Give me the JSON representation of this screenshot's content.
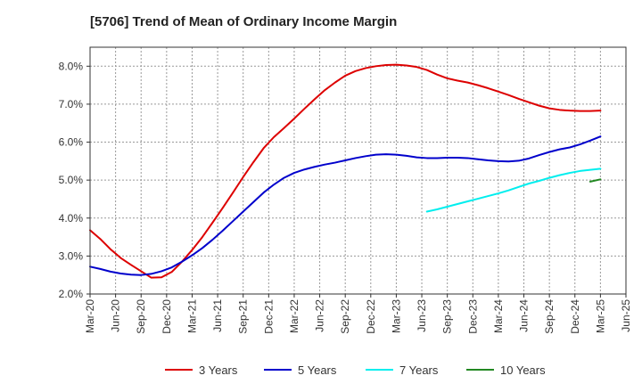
{
  "chart_data": {
    "type": "line",
    "title": "[5706]  Trend of Mean of Ordinary Income Margin",
    "xlabel": "",
    "ylabel": "",
    "x_tick_labels": [
      "Mar-20",
      "Jun-20",
      "Sep-20",
      "Dec-20",
      "Mar-21",
      "Jun-21",
      "Sep-21",
      "Dec-21",
      "Mar-22",
      "Jun-22",
      "Sep-22",
      "Dec-22",
      "Mar-23",
      "Jun-23",
      "Sep-23",
      "Dec-23",
      "Mar-24",
      "Jun-24",
      "Sep-24",
      "Dec-24",
      "Mar-25",
      "Jun-25"
    ],
    "y_tick_labels": [
      "2.0%",
      "3.0%",
      "4.0%",
      "5.0%",
      "6.0%",
      "7.0%",
      "8.0%"
    ],
    "ylim": [
      2.0,
      8.5
    ],
    "y_unit": "%",
    "grid": true,
    "grid_style": "dashed",
    "legend_position": "bottom",
    "series": [
      {
        "name": "3 Years",
        "color": "#dd0000",
        "values": [
          3.68,
          3.45,
          3.18,
          2.95,
          2.77,
          2.6,
          2.43,
          2.44,
          2.58,
          2.85,
          3.16,
          3.5,
          3.88,
          4.27,
          4.67,
          5.08,
          5.47,
          5.84,
          6.13,
          6.37,
          6.62,
          6.88,
          7.13,
          7.37,
          7.57,
          7.75,
          7.87,
          7.95,
          8.0,
          8.03,
          8.04,
          8.02,
          7.98,
          7.9,
          7.78,
          7.68,
          7.62,
          7.57,
          7.5,
          7.42,
          7.33,
          7.24,
          7.14,
          7.05,
          6.96,
          6.89,
          6.85,
          6.83,
          6.82,
          6.82,
          6.83
        ]
      },
      {
        "name": "5 Years",
        "color": "#0000cc",
        "values": [
          2.72,
          2.66,
          2.59,
          2.54,
          2.51,
          2.5,
          2.53,
          2.6,
          2.7,
          2.85,
          3.02,
          3.21,
          3.43,
          3.67,
          3.92,
          4.17,
          4.42,
          4.67,
          4.88,
          5.06,
          5.19,
          5.28,
          5.35,
          5.41,
          5.46,
          5.52,
          5.58,
          5.63,
          5.67,
          5.68,
          5.67,
          5.64,
          5.6,
          5.58,
          5.58,
          5.59,
          5.59,
          5.58,
          5.55,
          5.52,
          5.5,
          5.49,
          5.51,
          5.57,
          5.66,
          5.74,
          5.81,
          5.86,
          5.94,
          6.04,
          6.15
        ]
      },
      {
        "name": "7 Years",
        "color": "#00eeee",
        "values": [
          null,
          null,
          null,
          null,
          null,
          null,
          null,
          null,
          null,
          null,
          null,
          null,
          null,
          null,
          null,
          null,
          null,
          null,
          null,
          null,
          null,
          null,
          null,
          null,
          null,
          null,
          null,
          null,
          null,
          null,
          null,
          null,
          null,
          4.17,
          4.23,
          4.3,
          4.37,
          4.44,
          4.51,
          4.58,
          4.65,
          4.73,
          4.82,
          4.91,
          4.98,
          5.06,
          5.13,
          5.19,
          5.24,
          5.27,
          5.3
        ]
      },
      {
        "name": "10 Years",
        "color": "#228822",
        "values": [
          null,
          null,
          null,
          null,
          null,
          null,
          null,
          null,
          null,
          null,
          null,
          null,
          null,
          null,
          null,
          null,
          null,
          null,
          null,
          null,
          null,
          null,
          null,
          null,
          null,
          null,
          null,
          null,
          null,
          null,
          null,
          null,
          null,
          null,
          null,
          null,
          null,
          null,
          null,
          null,
          null,
          null,
          null,
          null,
          null,
          null,
          null,
          null,
          null,
          4.96,
          5.02
        ]
      }
    ],
    "series_end_tails": [
      [
        6.83,
        6.83,
        6.83,
        6.83,
        6.83,
        6.83,
        6.83,
        6.83,
        6.83,
        6.83,
        6.83,
        6.83,
        6.83,
        6.83,
        6.83,
        6.83,
        6.83,
        6.83,
        6.83,
        6.83,
        6.83,
        6.83,
        6.83,
        6.83,
        6.83,
        6.83,
        6.83,
        6.83,
        6.83,
        6.83,
        6.83,
        6.83,
        6.83,
        6.83,
        6.83,
        6.83,
        6.83,
        6.83,
        6.83,
        6.83,
        6.83,
        6.83,
        6.83,
        6.83,
        6.83,
        6.83,
        6.83,
        6.83,
        6.83,
        6.83,
        6.83
      ]
    ]
  }
}
